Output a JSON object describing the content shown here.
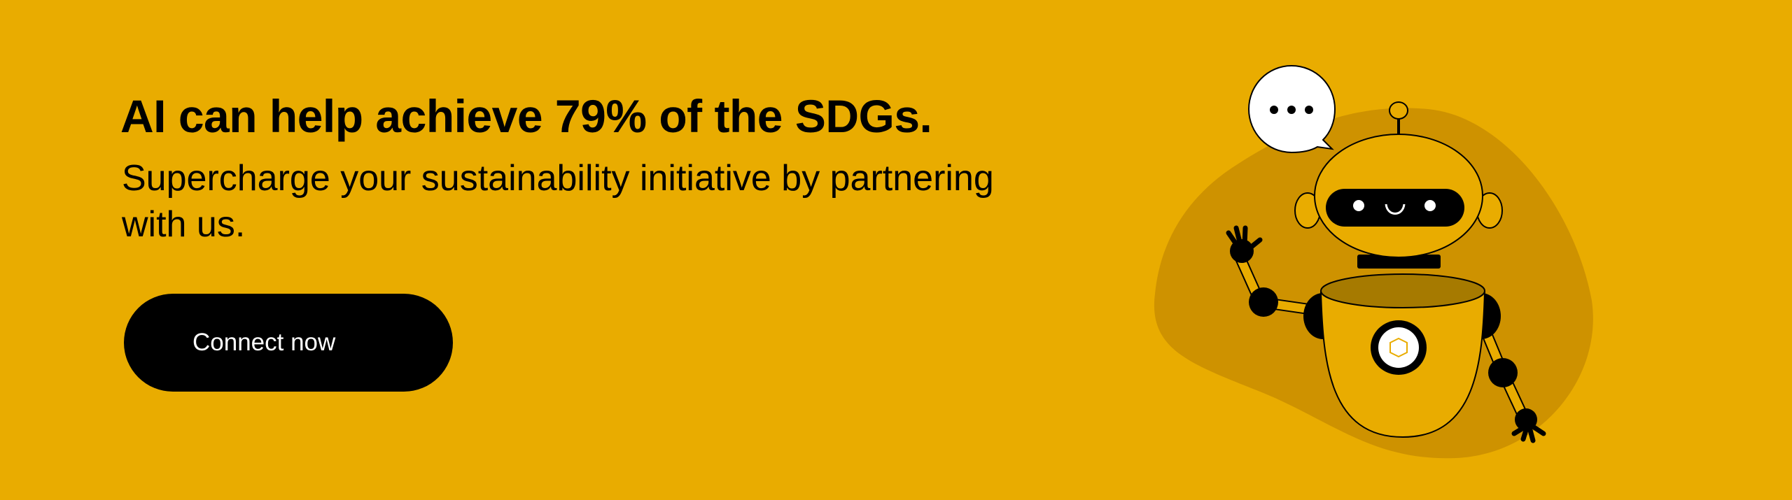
{
  "banner": {
    "headline": "AI can help achieve 79% of the SDGs.",
    "subtitle": "Supercharge your sustainability initiative by partnering with us.",
    "cta_label": "Connect now"
  },
  "illustration": {
    "subject": "robot-waving",
    "speech_bubble_icon": "ellipsis-icon"
  },
  "colors": {
    "background": "#E9AC00",
    "blob": "#CE9200",
    "button": "#000000",
    "button_text": "#FFFFFF"
  }
}
